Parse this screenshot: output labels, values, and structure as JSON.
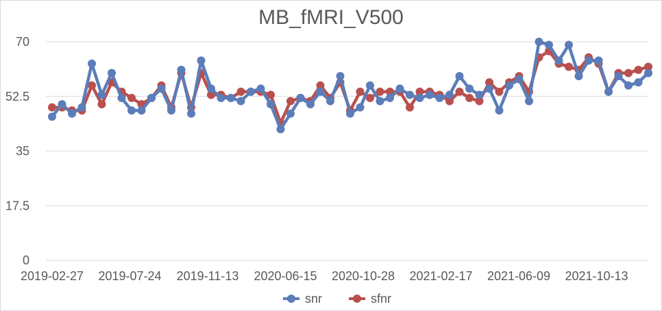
{
  "chart_data": {
    "type": "line",
    "title": "MB_fMRI_V500",
    "xlabel": "",
    "ylabel": "",
    "ylim": [
      0,
      70
    ],
    "y_ticks": [
      "0",
      "17.5",
      "35",
      "52.5",
      "70"
    ],
    "x_tick_labels": [
      "2019-02-27",
      "2019-07-24",
      "2019-11-13",
      "2020-06-15",
      "2020-10-28",
      "2021-02-17",
      "2021-06-09",
      "2021-10-13"
    ],
    "grid": "horizontal",
    "legend_position": "bottom",
    "series": [
      {
        "name": "snr",
        "color": "#5B7DB9",
        "values": [
          46,
          50,
          47,
          49,
          63,
          53,
          60,
          52,
          48,
          48,
          52,
          55,
          48,
          61,
          47,
          64,
          55,
          52,
          52,
          51,
          54,
          55,
          50,
          42,
          47,
          52,
          50,
          54,
          51,
          59,
          47,
          49,
          56,
          51,
          52,
          55,
          53,
          52,
          53,
          52,
          53,
          59,
          55,
          53,
          55,
          48,
          56,
          58,
          51,
          70,
          69,
          64,
          69,
          59,
          64,
          64,
          54,
          59,
          56,
          57,
          60
        ]
      },
      {
        "name": "sfnr",
        "color": "#B9504E",
        "values": [
          49,
          49,
          48,
          48,
          56,
          50,
          57,
          54,
          52,
          50,
          52,
          56,
          49,
          60,
          49,
          60,
          53,
          53,
          52,
          54,
          54,
          54,
          53,
          44,
          51,
          52,
          51,
          56,
          52,
          57,
          48,
          54,
          52,
          54,
          54,
          54,
          49,
          54,
          54,
          53,
          51,
          54,
          52,
          51,
          57,
          54,
          57,
          59,
          54,
          65,
          67,
          63,
          62,
          61,
          65,
          63,
          54,
          60,
          60,
          61,
          62
        ]
      }
    ]
  }
}
